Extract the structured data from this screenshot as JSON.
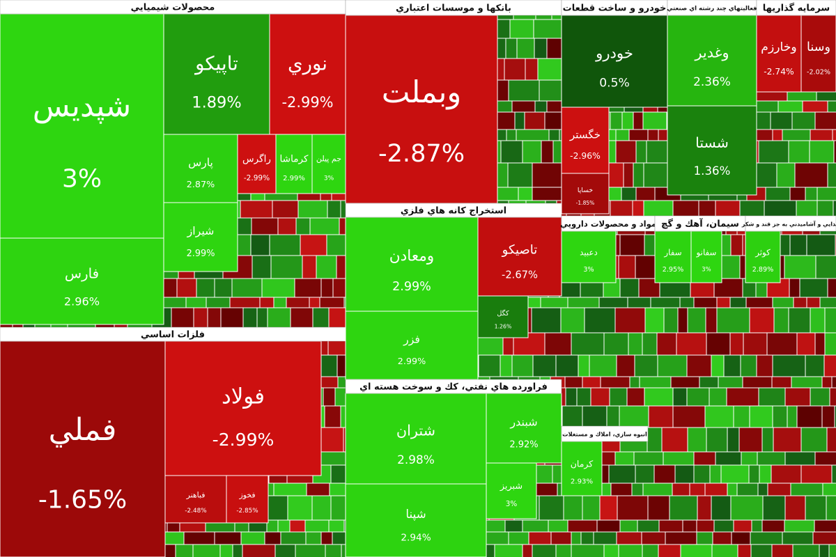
{
  "chart_data": {
    "type": "treemap",
    "series": [
      {
        "name": "محصولات شيميايي",
        "categories": [
          "شپديس",
          "فارس",
          "تاپيكو",
          "نوري",
          "پارس",
          "شيراز",
          "راگرس",
          "كرماشا",
          "جم پيلن"
        ],
        "values": [
          3,
          2.96,
          1.89,
          -2.99,
          2.87,
          2.99,
          -2.99,
          2.99,
          3
        ],
        "value_labels": [
          "3%",
          "2.96%",
          "1.89%",
          "-2.99%",
          "2.87%",
          "2.99%",
          "-2.99%",
          "2.99%",
          "3%"
        ]
      },
      {
        "name": "فلزات اساسي",
        "categories": [
          "فملي",
          "فولاد",
          "فباهنر",
          "فخوز"
        ],
        "values": [
          -1.65,
          -2.99,
          -2.48,
          -2.85
        ],
        "value_labels": [
          "-1.65%",
          "-2.99%",
          "-2.48%",
          "-2.85%"
        ]
      },
      {
        "name": "بانكها و موسسات اعتباري",
        "categories": [
          "وبملت"
        ],
        "values": [
          -2.87
        ],
        "value_labels": [
          "-2.87%"
        ]
      },
      {
        "name": "استخراج كانه هاي فلزي",
        "categories": [
          "ومعادن",
          "فزر",
          "تاصيكو",
          "كگل"
        ],
        "values": [
          2.99,
          2.99,
          -2.67,
          1.26
        ],
        "value_labels": [
          "2.99%",
          "2.99%",
          "-2.67%",
          "1.26%"
        ]
      },
      {
        "name": "فراورده هاي نفتي، كك و سوخت هسته اي",
        "categories": [
          "شتران",
          "شپنا",
          "شبندر",
          "شبريز"
        ],
        "values": [
          2.98,
          2.94,
          2.92,
          3
        ],
        "value_labels": [
          "2.98%",
          "2.94%",
          "2.92%",
          "3%"
        ]
      },
      {
        "name": "خودرو و ساخت قطعات",
        "categories": [
          "خودرو",
          "خگستر",
          "خساپا"
        ],
        "values": [
          0.5,
          -2.96,
          -1.85
        ],
        "value_labels": [
          "0.5%",
          "-2.96%",
          "-1.85%"
        ]
      },
      {
        "name": "فعاليتهاي چند رشته اي صنعتي",
        "categories": [
          "وغدير",
          "شستا"
        ],
        "values": [
          2.36,
          1.36
        ],
        "value_labels": [
          "2.36%",
          "1.36%"
        ]
      },
      {
        "name": "سرمايه گذاريها",
        "categories": [
          "وخارزم",
          "وسنا"
        ],
        "values": [
          -2.74,
          -2.02
        ],
        "value_labels": [
          "-2.74%",
          "-2.02%"
        ]
      },
      {
        "name": "مواد و محصولات دارويي",
        "categories": [
          "دعبيد"
        ],
        "values": [
          3
        ],
        "value_labels": [
          "3%"
        ]
      },
      {
        "name": "سيمان، آهك و گچ",
        "categories": [
          "سفار",
          "سفانو"
        ],
        "values": [
          2.95,
          3
        ],
        "value_labels": [
          "2.95%",
          "3%"
        ]
      },
      {
        "name": "غذايي و آشاميدني به جز قند و شكر",
        "categories": [
          "كوثر"
        ],
        "values": [
          2.89
        ],
        "value_labels": [
          "2.89%"
        ]
      },
      {
        "name": "انبوه سازي، املاك و مستغلات",
        "categories": [
          "كرمان"
        ],
        "values": [
          2.93
        ],
        "value_labels": [
          "2.93%"
        ]
      }
    ]
  }
}
